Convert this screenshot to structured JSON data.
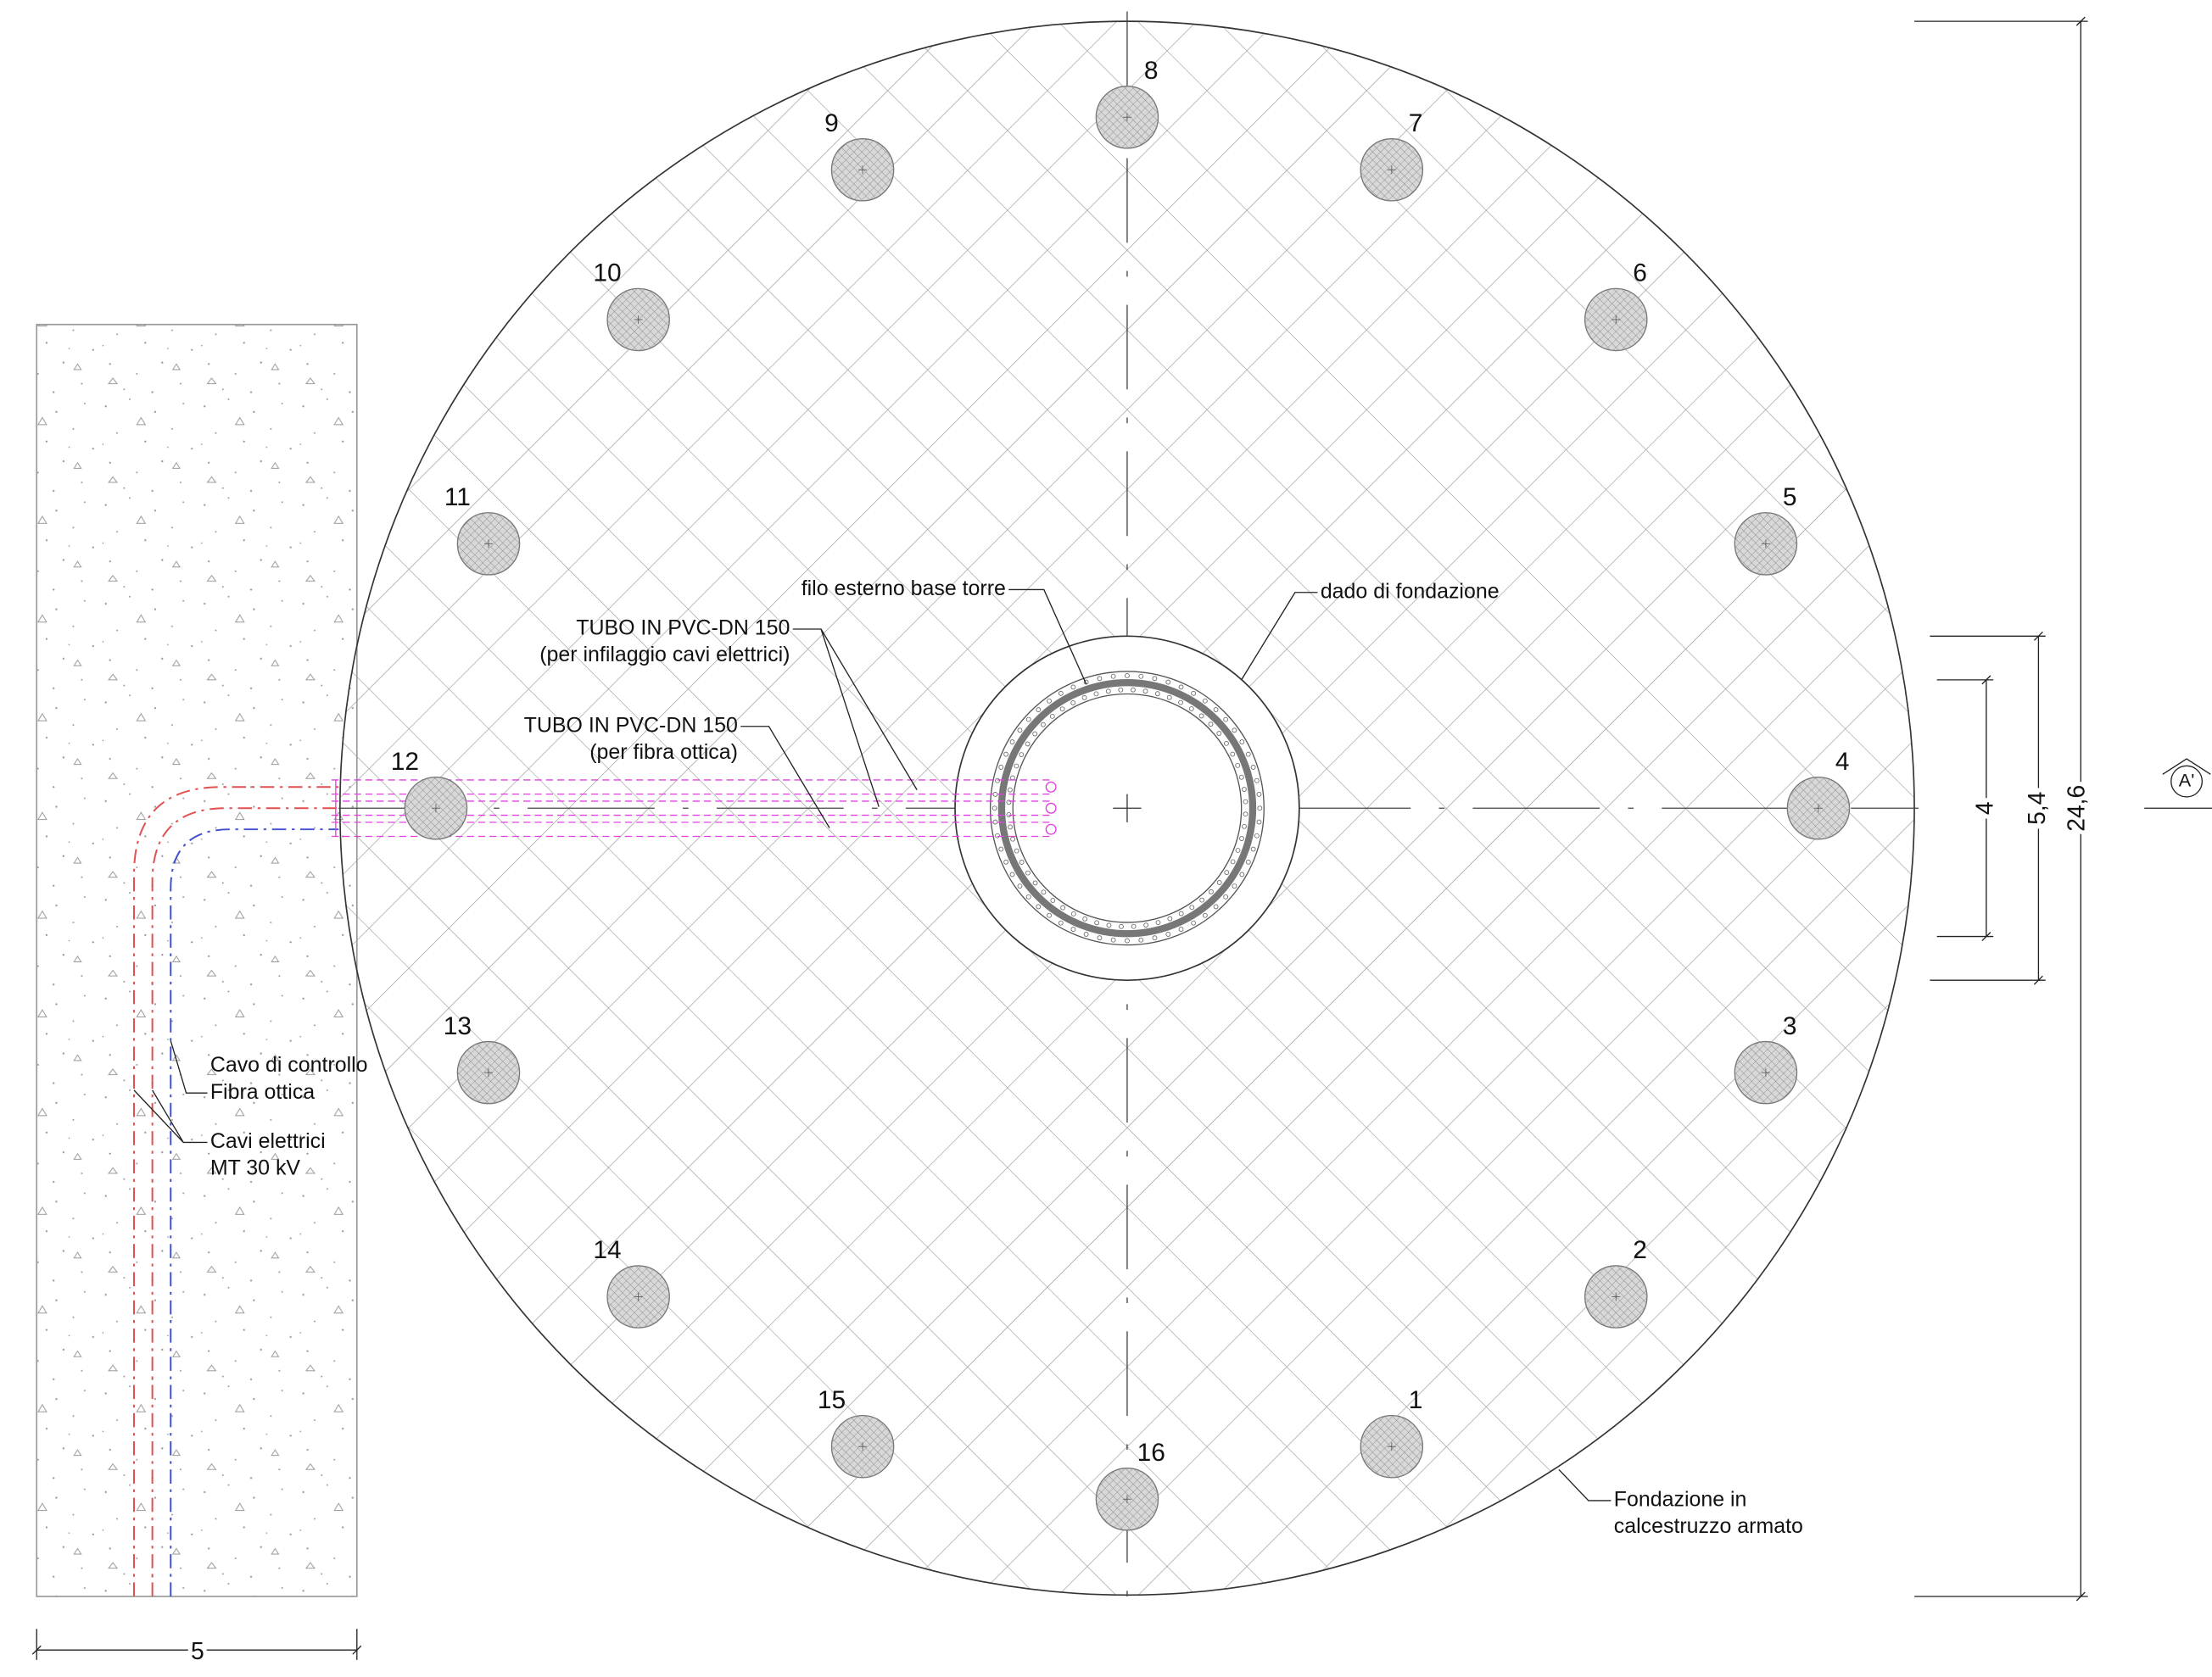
{
  "piles": [
    {
      "label": "1"
    },
    {
      "label": "2"
    },
    {
      "label": "3"
    },
    {
      "label": "4"
    },
    {
      "label": "5"
    },
    {
      "label": "6"
    },
    {
      "label": "7"
    },
    {
      "label": "8"
    },
    {
      "label": "9"
    },
    {
      "label": "10"
    },
    {
      "label": "11"
    },
    {
      "label": "12"
    },
    {
      "label": "13"
    },
    {
      "label": "14"
    },
    {
      "label": "15"
    },
    {
      "label": "16"
    }
  ],
  "annotations": {
    "tower_base": {
      "lines": [
        "filo esterno base torre"
      ]
    },
    "foundation_pedestal": {
      "lines": [
        "dado di fondazione"
      ]
    },
    "pipe_cables": {
      "lines": [
        "TUBO IN PVC-DN 150",
        "(per infilaggio cavi elettrici)"
      ]
    },
    "pipe_fiber": {
      "lines": [
        "TUBO IN PVC-DN 150",
        "(per fibra ottica)"
      ]
    },
    "control_cable": {
      "lines": [
        "Cavo di controllo",
        "Fibra ottica"
      ]
    },
    "power_cables": {
      "lines": [
        "Cavi elettrici",
        "MT 30 kV"
      ]
    },
    "foundation": {
      "lines": [
        "Fondazione in",
        "calcestruzzo armato"
      ]
    }
  },
  "dimensions": {
    "trench_width": "5",
    "tower_diameter": "4",
    "pedestal_diameter": "5,4",
    "foundation_diameter": "24,6"
  },
  "section_marker": "A'"
}
